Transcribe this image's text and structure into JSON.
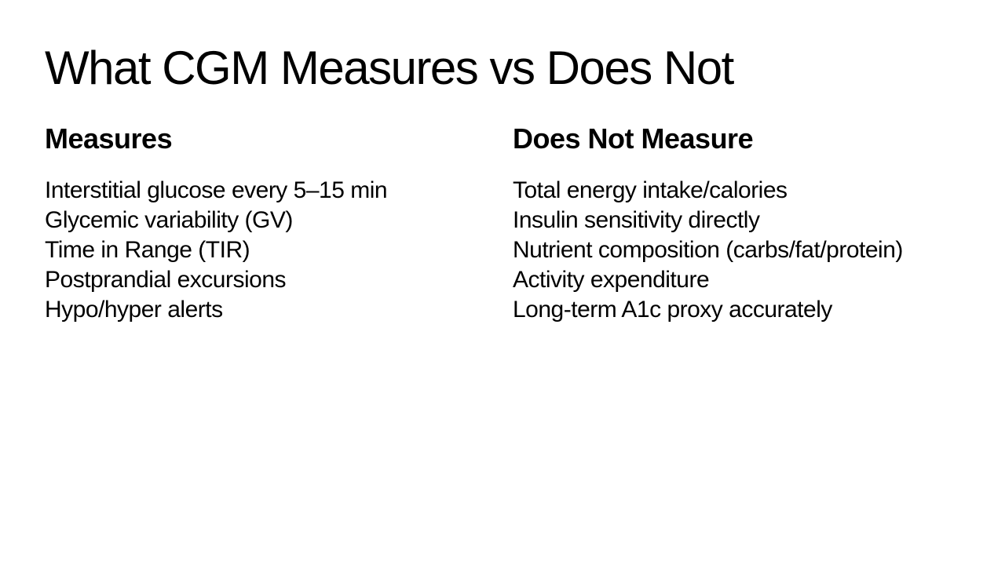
{
  "title": "What CGM Measures vs Does Not",
  "columns": [
    {
      "heading": "Measures",
      "items": [
        "Interstitial glucose every 5–15 min",
        "Glycemic variability (GV)",
        "Time in Range (TIR)",
        "Postprandial excursions",
        "Hypo/hyper alerts"
      ]
    },
    {
      "heading": "Does Not Measure",
      "items": [
        "Total energy intake/calories",
        "Insulin sensitivity directly",
        "Nutrient composition (carbs/fat/protein)",
        "Activity expenditure",
        "Long-term A1c proxy accurately"
      ]
    }
  ]
}
